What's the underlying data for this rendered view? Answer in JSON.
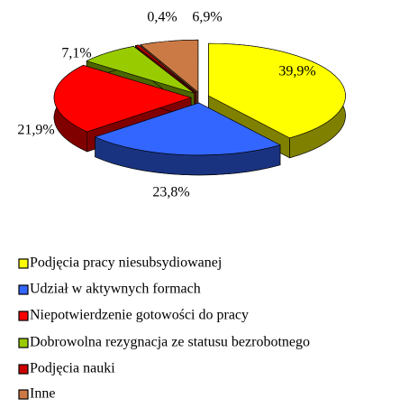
{
  "chart_data": {
    "type": "pie3d",
    "categories": [
      "Podjęcia pracy niesubsydiowanej",
      "Udział w aktywnych formach",
      "Niepotwierdzenie gotowości do pracy",
      "Dobrowolna rezygnacja ze statusu bezrobotnego",
      "Podjęcia nauki",
      "Inne"
    ],
    "values": [
      39.9,
      23.8,
      21.9,
      7.1,
      0.4,
      6.9
    ],
    "value_labels": [
      "39,9%",
      "23,8%",
      "21,9%",
      "7,1%",
      "0,4%",
      "6,9%"
    ],
    "colors": [
      "#ffff00",
      "#3366ff",
      "#ff0000",
      "#99cc00",
      "#cc0000",
      "#cc7a45"
    ],
    "legend": "bottom-left"
  }
}
